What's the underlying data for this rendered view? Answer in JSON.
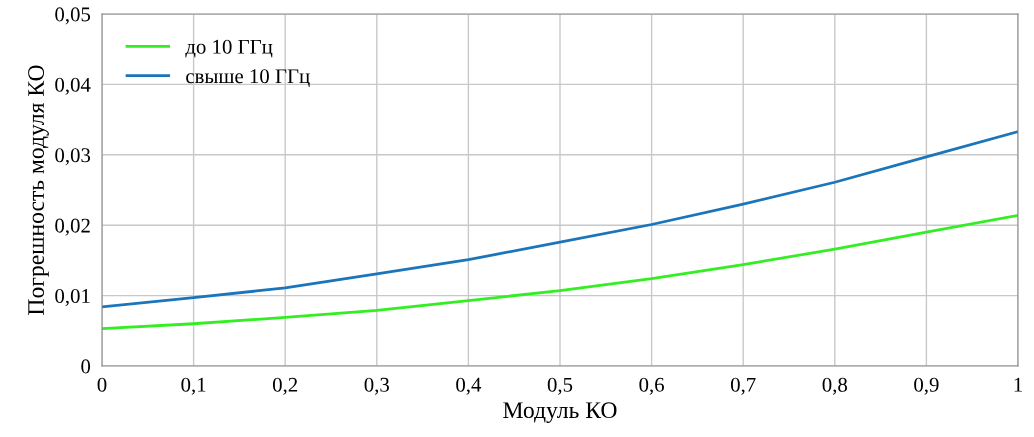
{
  "chart_data": {
    "type": "line",
    "xlabel": "Модуль КО",
    "ylabel": "Погрешность модуля КО",
    "x": [
      0,
      0.1,
      0.2,
      0.3,
      0.4,
      0.5,
      0.6,
      0.7,
      0.8,
      0.9,
      1.0
    ],
    "series": [
      {
        "name": "до 10 ГГц",
        "color": "#33ee22",
        "values": [
          0.0053,
          0.006,
          0.0069,
          0.0079,
          0.0093,
          0.0107,
          0.0124,
          0.0144,
          0.0166,
          0.019,
          0.0214
        ]
      },
      {
        "name": "свыше 10 ГГц",
        "color": "#1a75bb",
        "values": [
          0.0084,
          0.0097,
          0.0111,
          0.0131,
          0.0151,
          0.0176,
          0.0201,
          0.023,
          0.0261,
          0.0297,
          0.0333
        ]
      }
    ],
    "xlim": [
      0,
      1
    ],
    "ylim": [
      0,
      0.05
    ],
    "xticks": [
      0,
      {
        "value": 0.1,
        "label": "0,1"
      },
      {
        "value": 0.2,
        "label": "0,2"
      },
      {
        "value": 0.3,
        "label": "0,3"
      },
      {
        "value": 0.4,
        "label": "0,4"
      },
      {
        "value": 0.5,
        "label": "0,5"
      },
      {
        "value": 0.6,
        "label": "0,6"
      },
      {
        "value": 0.7,
        "label": "0,7"
      },
      {
        "value": 0.8,
        "label": "0,8"
      },
      {
        "value": 0.9,
        "label": "0,9"
      },
      1
    ],
    "yticks": [
      0,
      {
        "value": 0.01,
        "label": "0,01"
      },
      {
        "value": 0.02,
        "label": "0,02"
      },
      {
        "value": 0.03,
        "label": "0,03"
      },
      {
        "value": 0.04,
        "label": "0,04"
      },
      {
        "value": 0.05,
        "label": "0,05"
      }
    ],
    "grid": true,
    "legend": "top left",
    "marker": "none",
    "line_style": "solid"
  }
}
